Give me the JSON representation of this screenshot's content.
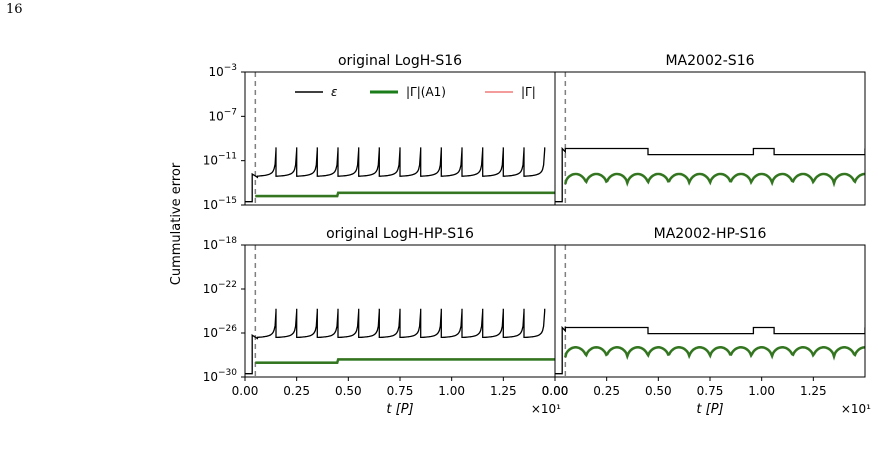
{
  "page": {
    "number": "16"
  },
  "chart_data": {
    "type": "line",
    "ylabel": "Cummulative error",
    "xlabel": "t [P]",
    "x_multiplier": "×10¹",
    "xlim": [
      0,
      1.5
    ],
    "x_ticks": [
      "0.00",
      "0.25",
      "0.50",
      "0.75",
      "1.00",
      "1.25",
      "0.00"
    ],
    "x_ticks_right": [
      "0.00",
      "0.25",
      "0.50",
      "0.75",
      "1.00",
      "1.25"
    ],
    "vline_x": 0.05,
    "legend": {
      "placement": "top",
      "entries": [
        {
          "label": "ε",
          "color": "#000000"
        },
        {
          "label": "|Γ|(A1)",
          "color": "#1a7d1a"
        },
        {
          "label": "|Γ|",
          "color": "#f07a7a"
        }
      ]
    },
    "panels": [
      {
        "title": "original LogH-S16",
        "log_ylim": [
          -15,
          -3
        ],
        "yticks": [
          {
            "base": "10",
            "exp": "−3",
            "v": -3
          },
          {
            "base": "10",
            "exp": "−7",
            "v": -7
          },
          {
            "base": "10",
            "exp": "−11",
            "v": -11
          },
          {
            "base": "10",
            "exp": "−15",
            "v": -15
          }
        ],
        "eps_base": -12.5,
        "eps_peak": -9.8,
        "gamma_level": -14.2,
        "gamma_step_x": 0.45,
        "gamma_step_to": -13.9,
        "style": "peaks"
      },
      {
        "title": "MA2002-S16",
        "log_ylim": [
          -15,
          -3
        ],
        "yticks": [],
        "eps_base": -10.2,
        "eps_peak": -9.8,
        "gamma_level": -12.2,
        "gamma_step_x": 0.45,
        "gamma_step_to": -12.2,
        "style": "steps"
      },
      {
        "title": "original LogH-HP-S16",
        "log_ylim": [
          -30,
          -18
        ],
        "yticks": [
          {
            "base": "10",
            "exp": "−18",
            "v": -18
          },
          {
            "base": "10",
            "exp": "−22",
            "v": -22
          },
          {
            "base": "10",
            "exp": "−26",
            "v": -26
          },
          {
            "base": "10",
            "exp": "−30",
            "v": -30
          }
        ],
        "eps_base": -26.5,
        "eps_peak": -23.8,
        "gamma_level": -28.7,
        "gamma_step_x": 0.45,
        "gamma_step_to": -28.4,
        "style": "peaks"
      },
      {
        "title": "MA2002-HP-S16",
        "log_ylim": [
          -30,
          -18
        ],
        "yticks": [],
        "eps_base": -25.8,
        "eps_peak": -25.2,
        "gamma_level": -27.3,
        "gamma_step_x": 0.45,
        "gamma_step_to": -27.3,
        "style": "steps"
      }
    ]
  }
}
